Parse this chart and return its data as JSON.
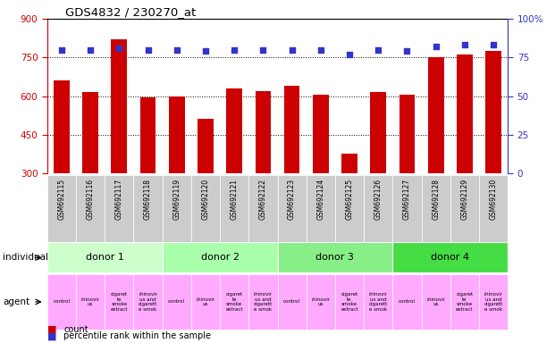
{
  "title": "GDS4832 / 230270_at",
  "samples": [
    "GSM692115",
    "GSM692116",
    "GSM692117",
    "GSM692118",
    "GSM692119",
    "GSM692120",
    "GSM692121",
    "GSM692122",
    "GSM692123",
    "GSM692124",
    "GSM692125",
    "GSM692126",
    "GSM692127",
    "GSM692128",
    "GSM692129",
    "GSM692130"
  ],
  "counts": [
    660,
    615,
    820,
    595,
    600,
    510,
    630,
    620,
    640,
    605,
    375,
    615,
    605,
    750,
    760,
    775
  ],
  "percentiles": [
    80,
    80,
    81,
    80,
    80,
    79,
    80,
    80,
    80,
    80,
    77,
    80,
    79,
    82,
    83,
    83
  ],
  "bar_bottom": 300,
  "left_ylim": [
    300,
    900
  ],
  "left_yticks": [
    300,
    450,
    600,
    750,
    900
  ],
  "right_ylim": [
    0,
    100
  ],
  "right_yticks": [
    0,
    25,
    50,
    75,
    100
  ],
  "bar_color": "#cc0000",
  "dot_color": "#3333cc",
  "bg_color": "#ffffff",
  "plot_bg": "#ffffff",
  "tick_color_left": "#cc0000",
  "tick_color_right": "#3333cc",
  "xticklabel_bg": "#cccccc",
  "donors": [
    {
      "label": "donor 1",
      "start": 0,
      "end": 4
    },
    {
      "label": "donor 2",
      "start": 4,
      "end": 8
    },
    {
      "label": "donor 3",
      "start": 8,
      "end": 12
    },
    {
      "label": "donor 4",
      "start": 12,
      "end": 16
    }
  ],
  "donor_colors": [
    "#ccffcc",
    "#aaffaa",
    "#88ee88",
    "#44dd44"
  ],
  "agent_short_labels": [
    "control",
    "rhinovir\nus",
    "cigaret\nte\nsmoke\nextract",
    "rhinovir\nus and\ncigarett\ne smok",
    "control",
    "rhinovir\nus",
    "cigaret\nte\nsmoke\nextract",
    "rhinovir\nus and\ncigarett\ne smok",
    "control",
    "rhinovir\nus",
    "cigaret\nte\nsmoke\nextract",
    "rhinovir\nus and\ncigarett\ne smok",
    "control",
    "rhinovir\nus",
    "cigaret\nte\nsmoke\nextract",
    "rhinovir\nus and\ncigarett\ne smok"
  ],
  "agent_color": "#ffaaff",
  "individual_label": "individual",
  "agent_label": "agent",
  "legend_count": "count",
  "legend_pct": "percentile rank within the sample"
}
